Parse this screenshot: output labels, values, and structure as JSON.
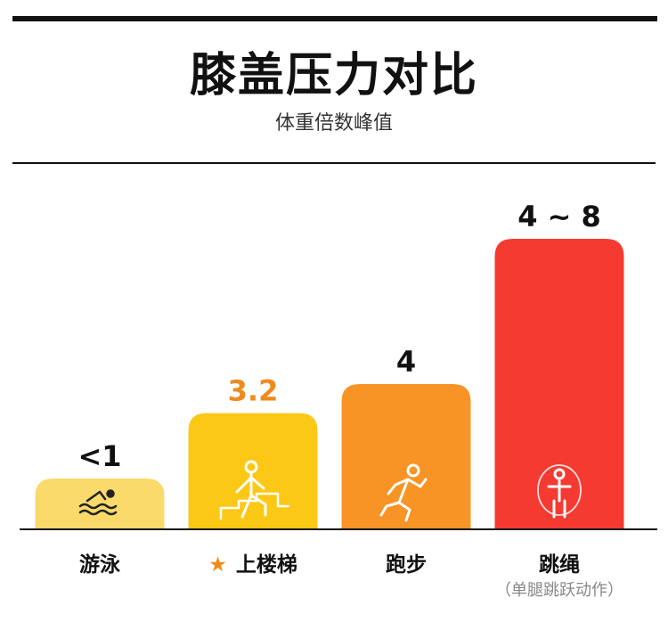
{
  "title": "膝盖压力对比",
  "subtitle": "体重倍数峰值",
  "chart_data": {
    "type": "bar",
    "title": "膝盖压力对比",
    "subtitle": "体重倍数峰值",
    "categories": [
      "游泳",
      "上楼梯",
      "跑步",
      "跳绳"
    ],
    "values": [
      1,
      3.2,
      4,
      8
    ],
    "value_labels": [
      "<1",
      "3.2",
      "4",
      "4 ~ 8"
    ],
    "category_notes": [
      "",
      "",
      "",
      "（单腿跳跃动作）"
    ],
    "highlight": {
      "category": "上楼梯",
      "marker": "star-icon",
      "color": "#f08a1c"
    },
    "bar_colors": [
      "#f9da6b",
      "#fcc816",
      "#f79425",
      "#f53a32"
    ],
    "value_label_colors": [
      "#111111",
      "#f08a1c",
      "#111111",
      "#111111"
    ],
    "icons": [
      "swimmer-icon",
      "stair-climber-icon",
      "runner-icon",
      "jump-rope-icon"
    ],
    "ylim": [
      0,
      8.6
    ],
    "grid": false,
    "legend": "none"
  }
}
